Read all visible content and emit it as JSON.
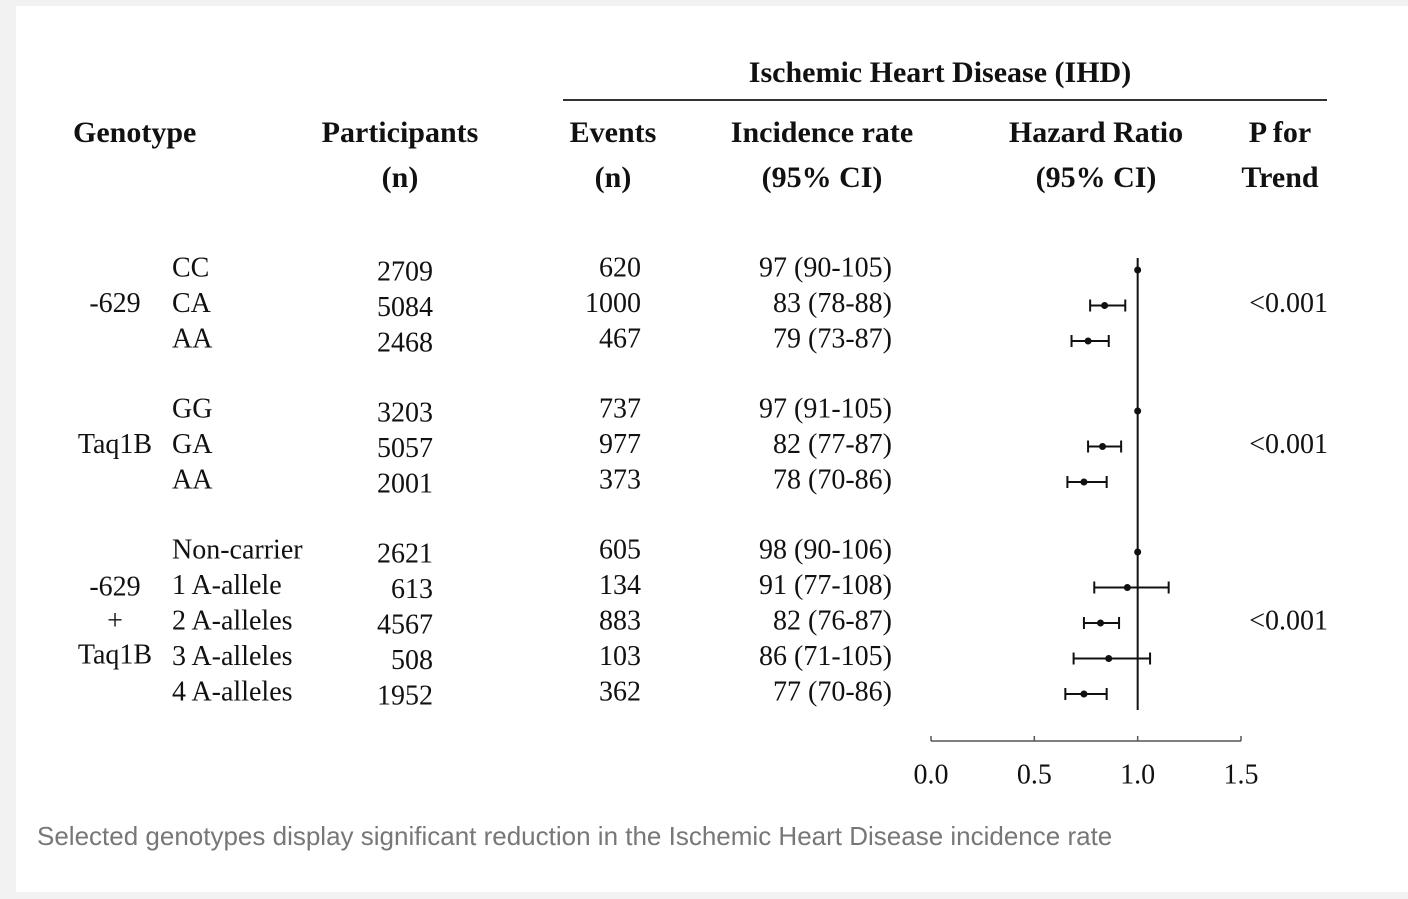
{
  "chart_data": {
    "type": "forest",
    "group_header": "Ischemic Heart Disease (IHD)",
    "headers": [
      [
        "Genotype"
      ],
      [
        "Participants",
        "(n)"
      ],
      [
        "Events",
        "(n)"
      ],
      [
        "Incidence rate",
        "(95% CI)"
      ],
      [
        "Hazard Ratio",
        "(95% CI)"
      ],
      [
        "P for",
        "Trend"
      ]
    ],
    "groups": [
      {
        "label": [
          "-629"
        ],
        "trend": "<0.001",
        "rows": [
          {
            "genotype": "CC",
            "participants": 2709,
            "events": 620,
            "incidence": "97 (90-105)",
            "hr": 1.0
          },
          {
            "genotype": "CA",
            "participants": 5084,
            "events": 1000,
            "incidence": "83 (78-88)",
            "hr": 0.84,
            "ci_low": 0.77,
            "ci_high": 0.94
          },
          {
            "genotype": "AA",
            "participants": 2468,
            "events": 467,
            "incidence": "79 (73-87)",
            "hr": 0.76,
            "ci_low": 0.68,
            "ci_high": 0.86
          }
        ]
      },
      {
        "label": [
          "Taq1B"
        ],
        "trend": "<0.001",
        "rows": [
          {
            "genotype": "GG",
            "participants": 3203,
            "events": 737,
            "incidence": "97 (91-105)",
            "hr": 1.0
          },
          {
            "genotype": "GA",
            "participants": 5057,
            "events": 977,
            "incidence": "82 (77-87)",
            "hr": 0.83,
            "ci_low": 0.76,
            "ci_high": 0.92
          },
          {
            "genotype": "AA",
            "participants": 2001,
            "events": 373,
            "incidence": "78 (70-86)",
            "hr": 0.74,
            "ci_low": 0.66,
            "ci_high": 0.85
          }
        ]
      },
      {
        "label": [
          "-629",
          "+",
          "Taq1B"
        ],
        "trend": "<0.001",
        "rows": [
          {
            "genotype": "Non-carrier",
            "participants": 2621,
            "events": 605,
            "incidence": "98 (90-106)",
            "hr": 1.0
          },
          {
            "genotype": "1 A-allele",
            "participants": 613,
            "events": 134,
            "incidence": "91 (77-108)",
            "hr": 0.95,
            "ci_low": 0.79,
            "ci_high": 1.15
          },
          {
            "genotype": "2 A-alleles",
            "participants": 4567,
            "events": 883,
            "incidence": "82 (76-87)",
            "hr": 0.82,
            "ci_low": 0.74,
            "ci_high": 0.91
          },
          {
            "genotype": "3 A-alleles",
            "participants": 508,
            "events": 103,
            "incidence": "86 (71-105)",
            "hr": 0.86,
            "ci_low": 0.69,
            "ci_high": 1.06
          },
          {
            "genotype": "4 A-alleles",
            "participants": 1952,
            "events": 362,
            "incidence": "77 (70-86)",
            "hr": 0.74,
            "ci_low": 0.65,
            "ci_high": 0.85
          }
        ]
      }
    ],
    "reference": 1,
    "xlim": [
      0,
      1.5
    ],
    "xticks": [
      {
        "value": 0,
        "label": "0.0"
      },
      0.5,
      {
        "value": 1,
        "label": "1.0"
      },
      1.5
    ]
  },
  "caption": "Selected genotypes display significant reduction in the Ischemic Heart Disease incidence rate"
}
